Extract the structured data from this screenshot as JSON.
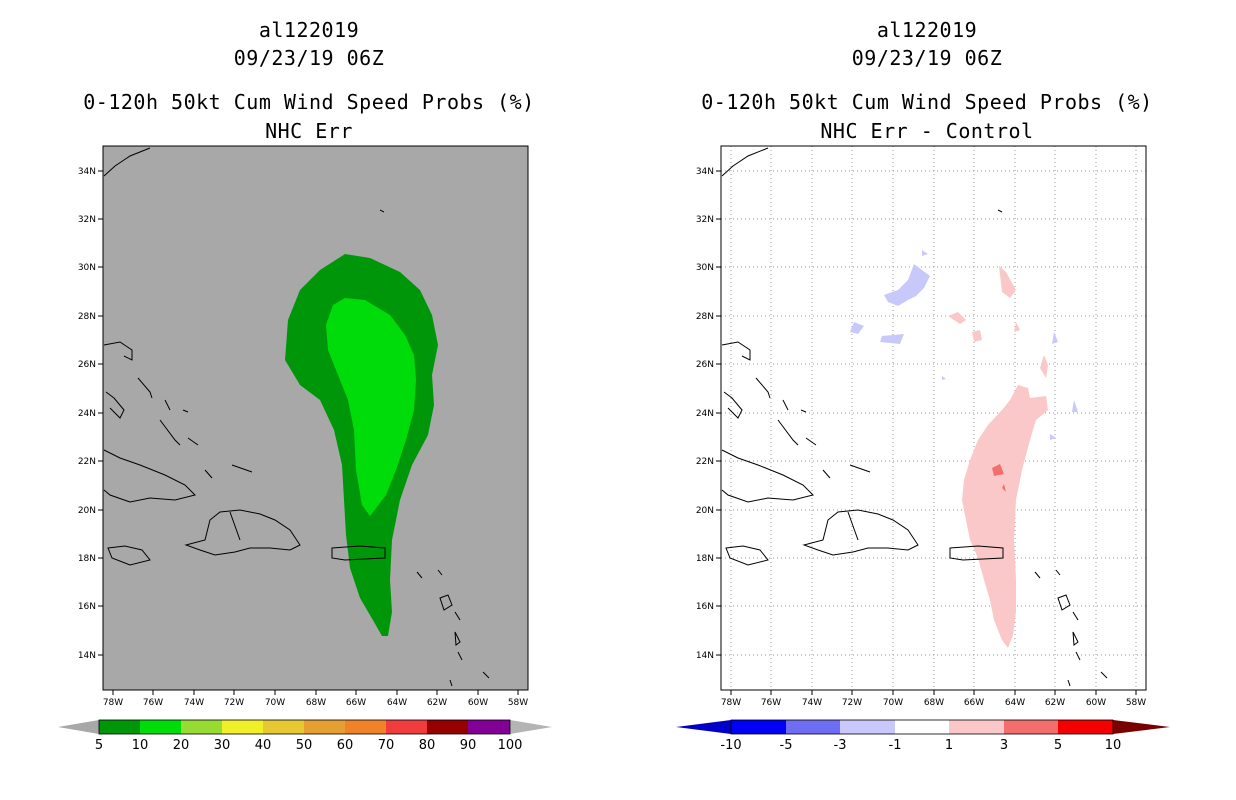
{
  "left": {
    "storm_id": "al122019",
    "date": "09/23/19 06Z",
    "product": "0-120h 50kt Cum Wind Speed Probs (%)",
    "subtitle": "NHC Err",
    "colors": {
      "background": "#a8a8a8",
      "p5": "#00960a",
      "p10": "#00dc0a",
      "p20": "#96dc32",
      "p30": "#f0f028",
      "p40": "#e6c832",
      "p50": "#e6a032",
      "p60": "#f08228",
      "p70": "#f03c3c",
      "p80": "#960000",
      "p90": "#820096",
      "p100": "#b4b4b4"
    },
    "colorbar_labels": [
      "5",
      "10",
      "20",
      "30",
      "40",
      "50",
      "60",
      "70",
      "80",
      "90",
      "100"
    ]
  },
  "right": {
    "storm_id": "al122019",
    "date": "09/23/19 06Z",
    "product": "0-120h 50kt Cum Wind Speed Probs (%)",
    "subtitle": "NHC Err - Control",
    "colors": {
      "background": "#ffffff",
      "n10": "#0000c8",
      "n5": "#0000f5",
      "n3": "#6e6ef5",
      "n1": "#c8c8fa",
      "zero": "#ffffff",
      "p1": "#fac8c8",
      "p3": "#f56e6e",
      "p5": "#f50000",
      "p10": "#780000"
    },
    "colorbar_labels": [
      "-10",
      "-5",
      "-3",
      "-1",
      "1",
      "3",
      "5",
      "10"
    ]
  },
  "axes": {
    "lat_labels": [
      "34N",
      "32N",
      "30N",
      "28N",
      "26N",
      "24N",
      "22N",
      "20N",
      "18N",
      "16N",
      "14N"
    ],
    "lon_labels": [
      "78W",
      "76W",
      "74W",
      "72W",
      "70W",
      "68W",
      "66W",
      "64W",
      "62W",
      "60W",
      "58W"
    ]
  }
}
